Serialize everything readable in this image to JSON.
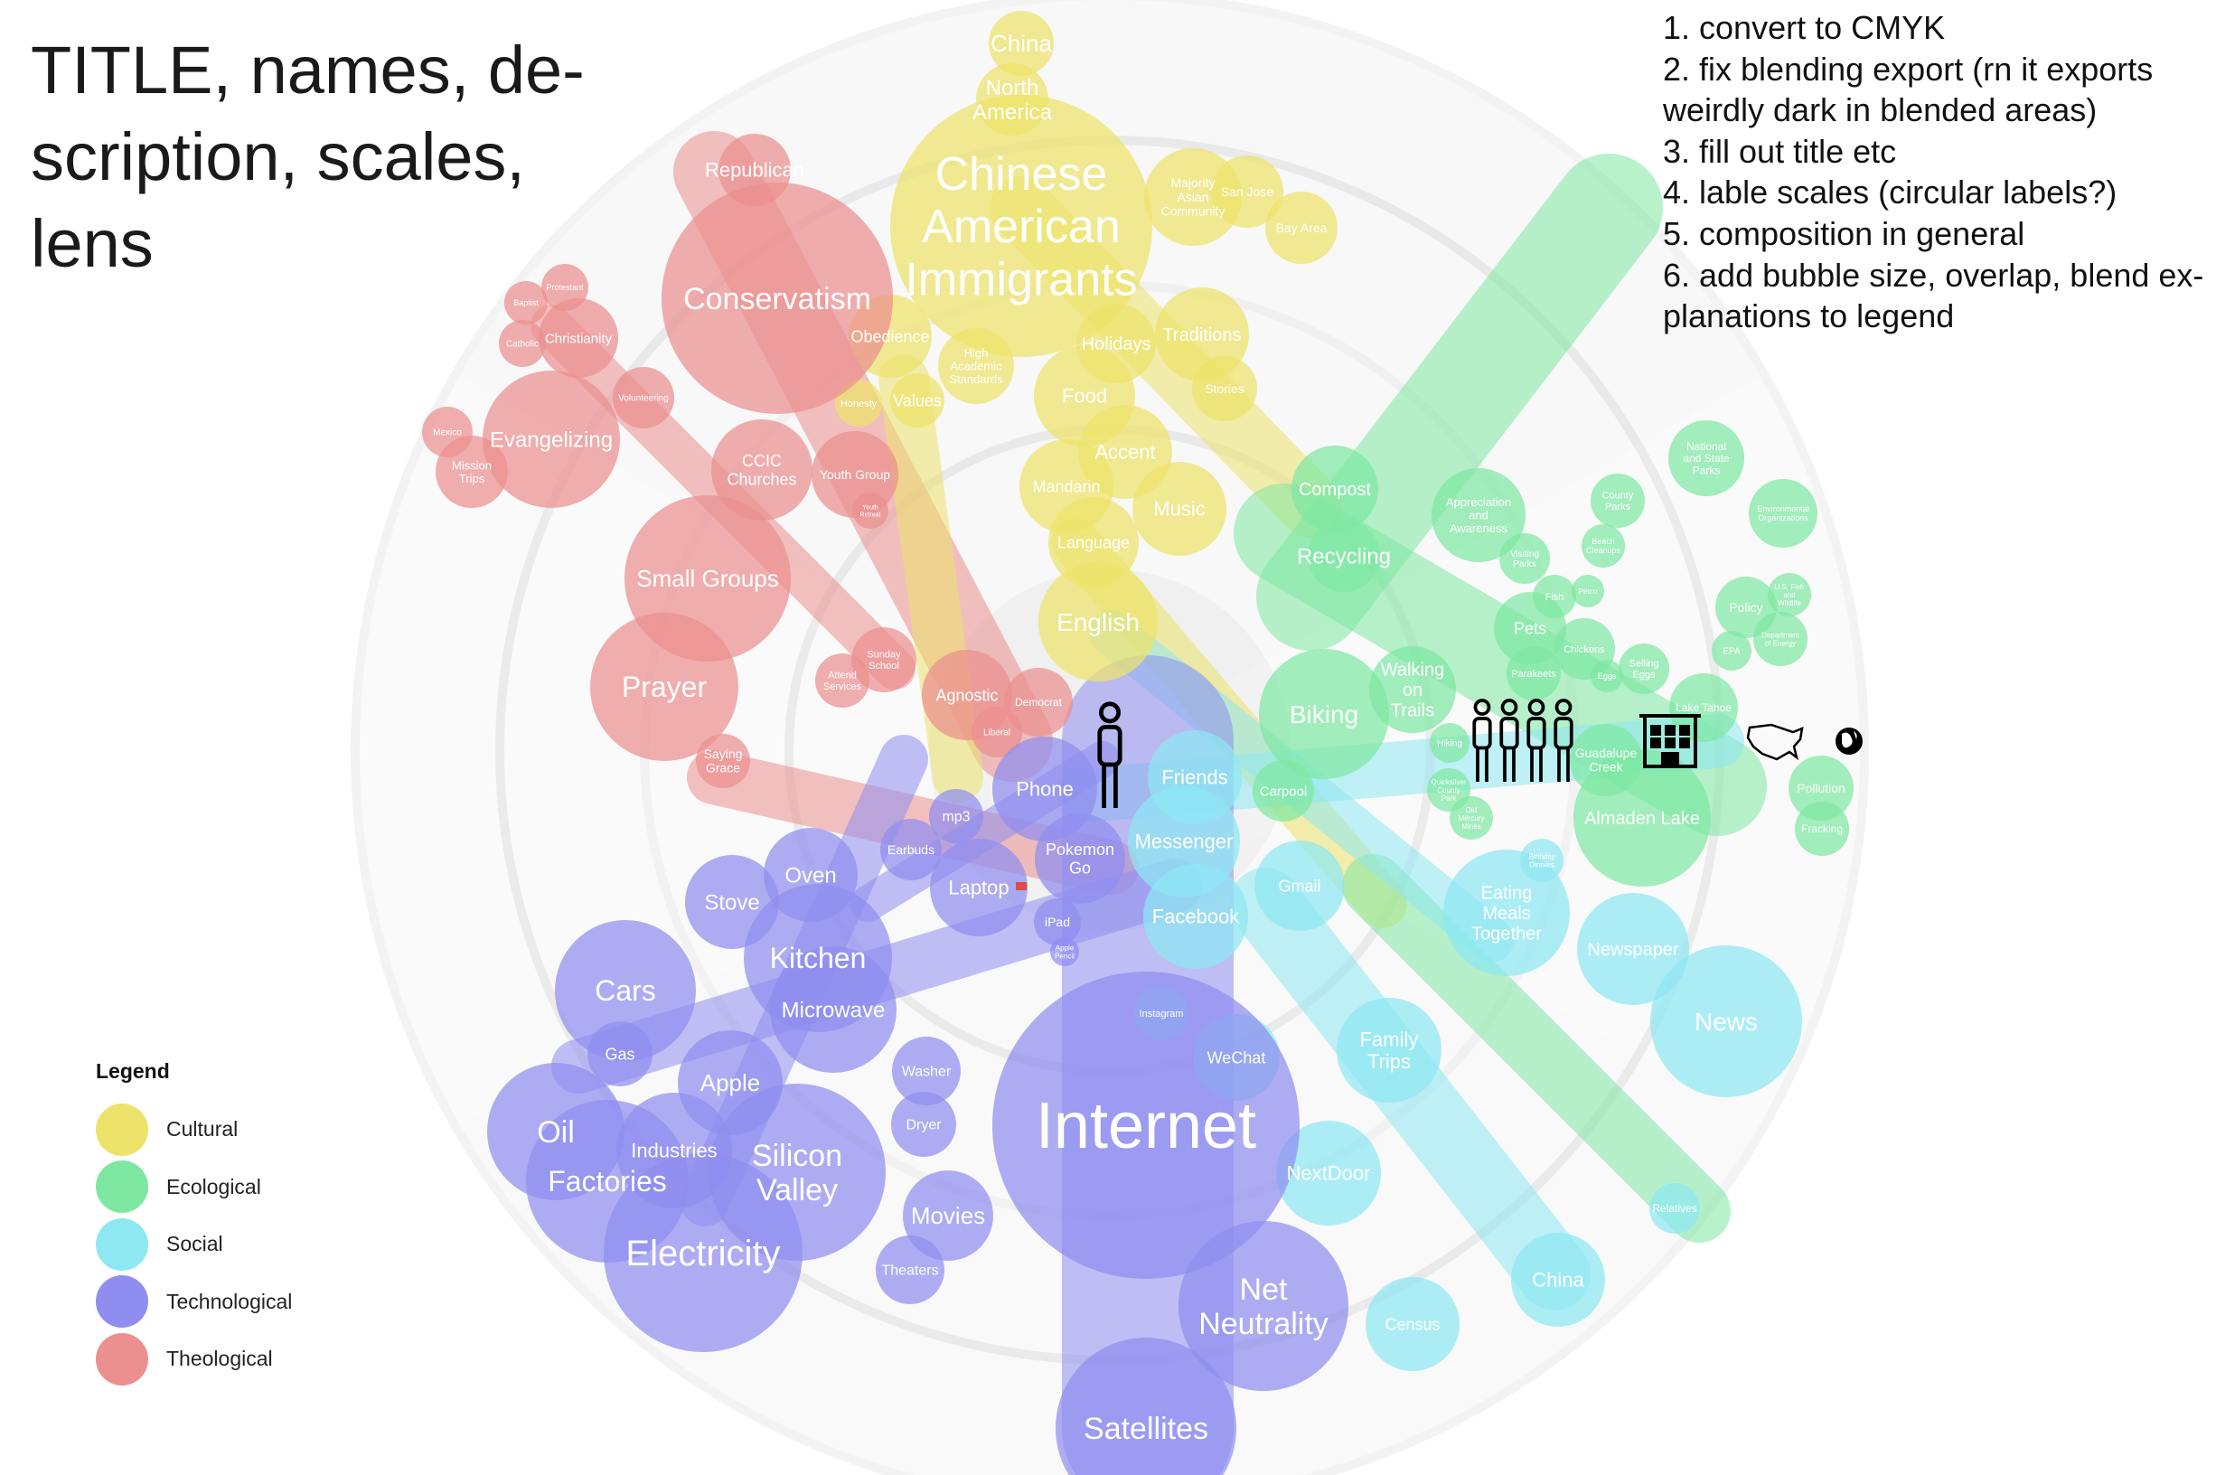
{
  "title_lines": [
    "TITLE, names, de-",
    "scription, scales,",
    "lens"
  ],
  "todo_lines": [
    "1. convert to CMYK",
    "2. fix blending export (rn it exports",
    "weirdly dark in blended areas)",
    "3. fill out title etc",
    "4. lable scales (circular labels?)",
    "5. composition in general",
    "6. add bubble size, overlap, blend ex-",
    "planations to legend"
  ],
  "legend": {
    "title": "Legend",
    "items": [
      {
        "label": "Cultural",
        "color": "#ede36a"
      },
      {
        "label": "Ecological",
        "color": "#7ee8a2"
      },
      {
        "label": "Social",
        "color": "#8ee8f2"
      },
      {
        "label": "Technological",
        "color": "#8f8ef0"
      },
      {
        "label": "Theological",
        "color": "#ec8f8f"
      }
    ]
  },
  "colors": {
    "cultural": "#ede36a",
    "ecological": "#7ee8a2",
    "social": "#8ee8f2",
    "technological": "#8f8ef0",
    "theological": "#ec8f8f",
    "ring_light": "#f3f3f3",
    "ring_dark": "#e9e9e9",
    "icon": "#000000"
  },
  "scale_icons": [
    "individual-icon",
    "family-icon",
    "building-icon",
    "us-map-icon",
    "globe-icon"
  ],
  "nodes": [
    {
      "label": "China",
      "cat": "cultural"
    },
    {
      "label": "North America",
      "cat": "cultural"
    },
    {
      "label": "Chinese American Immigrants",
      "cat": "cultural"
    },
    {
      "label": "Majority Asian Community",
      "cat": "cultural"
    },
    {
      "label": "San Jose",
      "cat": "cultural"
    },
    {
      "label": "Bay Area",
      "cat": "cultural"
    },
    {
      "label": "Traditions",
      "cat": "cultural"
    },
    {
      "label": "Stories",
      "cat": "cultural"
    },
    {
      "label": "Holidays",
      "cat": "cultural"
    },
    {
      "label": "Obedience",
      "cat": "cultural"
    },
    {
      "label": "High Academic Standards",
      "cat": "cultural"
    },
    {
      "label": "Honesty",
      "cat": "cultural"
    },
    {
      "label": "Values",
      "cat": "cultural"
    },
    {
      "label": "Food",
      "cat": "cultural"
    },
    {
      "label": "Accent",
      "cat": "cultural"
    },
    {
      "label": "Mandarin",
      "cat": "cultural"
    },
    {
      "label": "Music",
      "cat": "cultural"
    },
    {
      "label": "Language",
      "cat": "cultural"
    },
    {
      "label": "English",
      "cat": "cultural"
    },
    {
      "label": "Republican",
      "cat": "theological"
    },
    {
      "label": "Conservatism",
      "cat": "theological"
    },
    {
      "label": "Protestant",
      "cat": "theological"
    },
    {
      "label": "Baptist",
      "cat": "theological"
    },
    {
      "label": "Catholic",
      "cat": "theological"
    },
    {
      "label": "Christianity",
      "cat": "theological"
    },
    {
      "label": "Volunteering",
      "cat": "theological"
    },
    {
      "label": "Mexico",
      "cat": "theological"
    },
    {
      "label": "Evangelizing",
      "cat": "theological"
    },
    {
      "label": "Mission Trips",
      "cat": "theological"
    },
    {
      "label": "CCIC Churches",
      "cat": "theological"
    },
    {
      "label": "Youth Group",
      "cat": "theological"
    },
    {
      "label": "Youth Retreat",
      "cat": "theological"
    },
    {
      "label": "Small Groups",
      "cat": "theological"
    },
    {
      "label": "Prayer",
      "cat": "theological"
    },
    {
      "label": "Sunday School",
      "cat": "theological"
    },
    {
      "label": "Attend Services",
      "cat": "theological"
    },
    {
      "label": "Agnostic",
      "cat": "theological"
    },
    {
      "label": "Democrat",
      "cat": "theological"
    },
    {
      "label": "Liberal",
      "cat": "theological"
    },
    {
      "label": "Saying Grace",
      "cat": "theological"
    },
    {
      "label": "Compost",
      "cat": "ecological"
    },
    {
      "label": "Recycling",
      "cat": "ecological"
    },
    {
      "label": "Appreciation and Awareness",
      "cat": "ecological"
    },
    {
      "label": "Visiting Parks",
      "cat": "ecological"
    },
    {
      "label": "County Parks",
      "cat": "ecological"
    },
    {
      "label": "Beach Cleanups",
      "cat": "ecological"
    },
    {
      "label": "National and State Parks",
      "cat": "ecological"
    },
    {
      "label": "Environmental Organizations",
      "cat": "ecological"
    },
    {
      "label": "Fish",
      "cat": "ecological"
    },
    {
      "label": "Petco",
      "cat": "ecological"
    },
    {
      "label": "Pets",
      "cat": "ecological"
    },
    {
      "label": "Chickens",
      "cat": "ecological"
    },
    {
      "label": "Parakeets",
      "cat": "ecological"
    },
    {
      "label": "Eggs",
      "cat": "ecological"
    },
    {
      "label": "Selling Eggs",
      "cat": "ecological"
    },
    {
      "label": "Policy",
      "cat": "ecological"
    },
    {
      "label": "U.S. Fish and Wildlife",
      "cat": "ecological"
    },
    {
      "label": "EPA",
      "cat": "ecological"
    },
    {
      "label": "Department of Energy",
      "cat": "ecological"
    },
    {
      "label": "Lake Tahoe",
      "cat": "ecological"
    },
    {
      "label": "Biking",
      "cat": "ecological"
    },
    {
      "label": "Walking on Trails",
      "cat": "ecological"
    },
    {
      "label": "Hiking",
      "cat": "ecological"
    },
    {
      "label": "Quicksilver County Park",
      "cat": "ecological"
    },
    {
      "label": "Old Mercury Mines",
      "cat": "ecological"
    },
    {
      "label": "Guadalupe Creek",
      "cat": "ecological"
    },
    {
      "label": "Almaden Lake",
      "cat": "ecological"
    },
    {
      "label": "Pollution",
      "cat": "ecological"
    },
    {
      "label": "Fracking",
      "cat": "ecological"
    },
    {
      "label": "Carpool",
      "cat": "ecological"
    },
    {
      "label": "Friends",
      "cat": "social"
    },
    {
      "label": "Messenger",
      "cat": "social"
    },
    {
      "label": "Facebook",
      "cat": "social"
    },
    {
      "label": "Gmail",
      "cat": "social"
    },
    {
      "label": "Birthday Dinners",
      "cat": "social"
    },
    {
      "label": "Eating Meals Together",
      "cat": "social"
    },
    {
      "label": "Newspaper",
      "cat": "social"
    },
    {
      "label": "News",
      "cat": "social"
    },
    {
      "label": "Family Trips",
      "cat": "social"
    },
    {
      "label": "Relatives",
      "cat": "social"
    },
    {
      "label": "China",
      "cat": "social"
    },
    {
      "label": "NextDoor",
      "cat": "social"
    },
    {
      "label": "Census",
      "cat": "social"
    },
    {
      "label": "WeChat",
      "cat": "social"
    },
    {
      "label": "Instagram",
      "cat": "social"
    },
    {
      "label": "Phone",
      "cat": "technological"
    },
    {
      "label": "mp3",
      "cat": "technological"
    },
    {
      "label": "Earbuds",
      "cat": "technological"
    },
    {
      "label": "Pokemon Go",
      "cat": "technological"
    },
    {
      "label": "Laptop",
      "cat": "technological"
    },
    {
      "label": "iPad",
      "cat": "technological"
    },
    {
      "label": "Apple Pencil",
      "cat": "technological"
    },
    {
      "label": "Oven",
      "cat": "technological"
    },
    {
      "label": "Stove",
      "cat": "technological"
    },
    {
      "label": "Kitchen",
      "cat": "technological"
    },
    {
      "label": "Microwave",
      "cat": "technological"
    },
    {
      "label": "Washer",
      "cat": "technological"
    },
    {
      "label": "Dryer",
      "cat": "technological"
    },
    {
      "label": "Cars",
      "cat": "technological"
    },
    {
      "label": "Gas",
      "cat": "technological"
    },
    {
      "label": "Apple",
      "cat": "technological"
    },
    {
      "label": "Oil",
      "cat": "technological"
    },
    {
      "label": "Factories",
      "cat": "technological"
    },
    {
      "label": "Industries",
      "cat": "technological"
    },
    {
      "label": "Silicon Valley",
      "cat": "technological"
    },
    {
      "label": "Electricity",
      "cat": "technological"
    },
    {
      "label": "Movies",
      "cat": "technological"
    },
    {
      "label": "Theaters",
      "cat": "technological"
    },
    {
      "label": "Internet",
      "cat": "technological"
    },
    {
      "label": "Net Neutrality",
      "cat": "technological"
    },
    {
      "label": "Satellites",
      "cat": "technological"
    }
  ]
}
